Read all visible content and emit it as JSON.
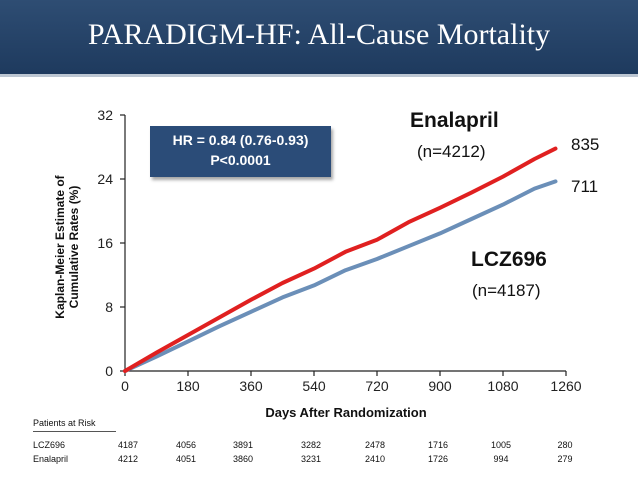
{
  "title": "PARADIGM-HF: All-Cause Mortality",
  "annotation": {
    "hr_line1": "HR = 0.84 (0.76-0.93)",
    "hr_line2": "P<0.0001"
  },
  "labels": {
    "enalapril_name": "Enalapril",
    "enalapril_n": "(n=4212)",
    "enalapril_end": "835",
    "lcz_name": "LCZ696",
    "lcz_n": "(n=4187)",
    "lcz_end": "711"
  },
  "colors": {
    "enalapril": "#e02020",
    "lcz696": "#6b8fb8",
    "title_bg": "#2a4a70"
  },
  "chart_data": {
    "type": "line",
    "title": "PARADIGM-HF: All-Cause Mortality",
    "xlabel": "Days After Randomization",
    "ylabel_line1": "Kaplan-Meier Estimate of",
    "ylabel_line2": "Cumulative Rates (%)",
    "xlim": [
      0,
      1260
    ],
    "ylim": [
      0,
      32
    ],
    "xticks": [
      "0",
      "180",
      "360",
      "540",
      "720",
      "900",
      "1080",
      "1260"
    ],
    "yticks": [
      "0",
      "8",
      "16",
      "24",
      "32"
    ],
    "series": [
      {
        "name": "Enalapril",
        "x": [
          0,
          90,
          180,
          270,
          360,
          450,
          540,
          630,
          720,
          810,
          900,
          990,
          1080,
          1170,
          1230
        ],
        "y": [
          0,
          2.3,
          4.5,
          6.7,
          8.9,
          11.0,
          12.8,
          14.9,
          16.4,
          18.6,
          20.4,
          22.3,
          24.3,
          26.5,
          27.8
        ]
      },
      {
        "name": "LCZ696",
        "x": [
          0,
          90,
          180,
          270,
          360,
          450,
          540,
          630,
          720,
          810,
          900,
          990,
          1080,
          1170,
          1230
        ],
        "y": [
          0,
          1.8,
          3.7,
          5.6,
          7.4,
          9.2,
          10.7,
          12.6,
          14.0,
          15.6,
          17.2,
          19.0,
          20.8,
          22.8,
          23.7
        ]
      }
    ]
  },
  "risk_table": {
    "header": "Patients at Risk",
    "rows": [
      {
        "name": "LCZ696",
        "values": [
          "4187",
          "4056",
          "3891",
          "3282",
          "2478",
          "1716",
          "1005",
          "280"
        ]
      },
      {
        "name": "Enalapril",
        "values": [
          "4212",
          "4051",
          "3860",
          "3231",
          "2410",
          "1726",
          "994",
          "279"
        ]
      }
    ]
  }
}
